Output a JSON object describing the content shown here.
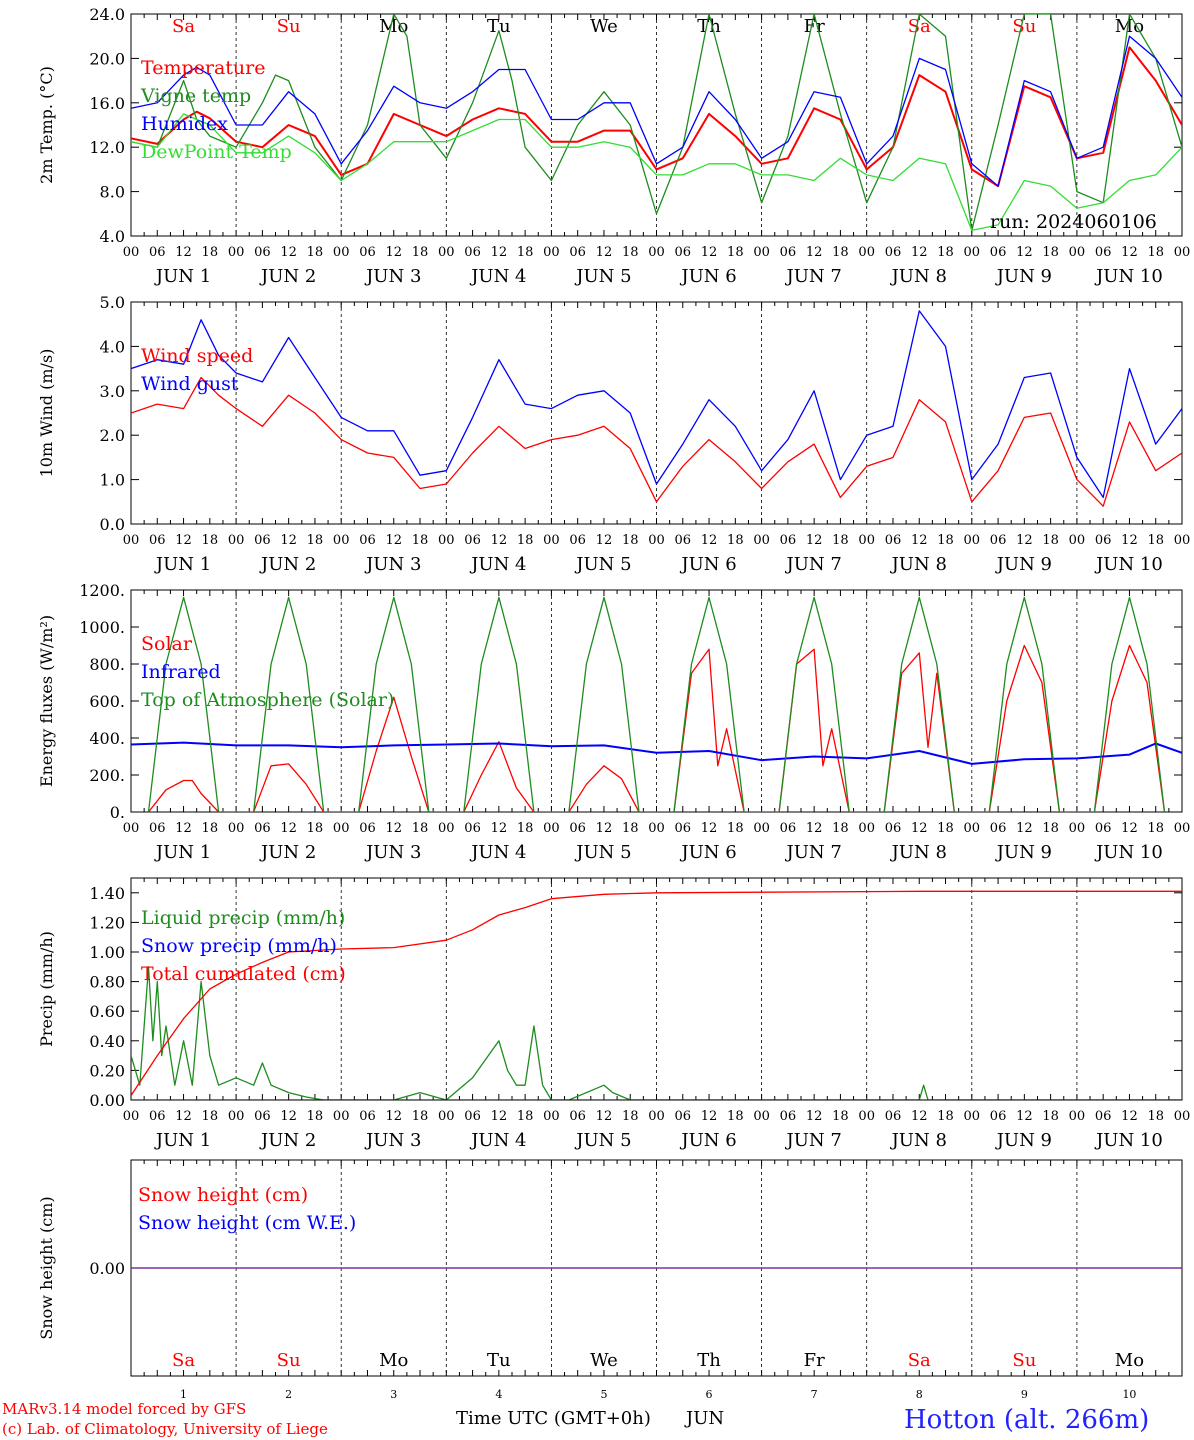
{
  "meta": {
    "run_label": "run: 2024060106",
    "credits": [
      "MARv3.14 model forced by GFS",
      "(c) Lab. of Climatology, University of Liege"
    ],
    "station": "Hotton (alt. 266m)",
    "xaxis_title": "Time UTC (GMT+0h)",
    "xaxis_month": "JUN"
  },
  "colors": {
    "red": "#ff0000",
    "green": "#1e8c1e",
    "blue": "#0000ff",
    "lightgreen": "#33dd33",
    "purple": "#7a2a9a"
  },
  "axis": {
    "days": [
      "1",
      "2",
      "3",
      "4",
      "5",
      "6",
      "7",
      "8",
      "9",
      "10"
    ],
    "weekdays": [
      "Sa",
      "Su",
      "Mo",
      "Tu",
      "We",
      "Th",
      "Fr",
      "Sa",
      "Su",
      "Mo"
    ],
    "weekend": [
      true,
      true,
      false,
      false,
      false,
      false,
      false,
      true,
      true,
      false
    ],
    "hour_labels": [
      "00",
      "06",
      "12",
      "18"
    ],
    "end_label": "00",
    "date_prefix": "JUN"
  },
  "chart_data": [
    {
      "type": "line",
      "ylabel": "2m Temp. (°C)",
      "ylim": [
        4,
        24
      ],
      "yticks": [
        "4.0",
        "8.0",
        "12.0",
        "16.0",
        "20.0",
        "24.0"
      ],
      "x_unit": "hours since JUN 1 00 UTC",
      "legend_placement": "top-left",
      "series": [
        {
          "name": "Temperature",
          "color": "red",
          "x": [
            0,
            6,
            12,
            15,
            18,
            24,
            30,
            36,
            42,
            48,
            54,
            60,
            66,
            72,
            78,
            84,
            90,
            96,
            102,
            108,
            114,
            120,
            126,
            132,
            138,
            144,
            150,
            156,
            162,
            168,
            174,
            180,
            186,
            192,
            198,
            204,
            210,
            216,
            222,
            228,
            234,
            240
          ],
          "y": [
            12.8,
            12.3,
            14.5,
            15.2,
            14.6,
            12.5,
            12.0,
            14.0,
            13.0,
            9.5,
            10.5,
            15.0,
            14.0,
            13.0,
            14.5,
            15.5,
            15.0,
            12.5,
            12.5,
            13.5,
            13.5,
            10.0,
            11.0,
            15.0,
            13.0,
            10.5,
            11.0,
            15.5,
            14.5,
            10.0,
            12.0,
            18.5,
            17.0,
            10.0,
            8.5,
            17.5,
            16.5,
            11.0,
            11.5,
            21.0,
            18.0,
            14.0
          ]
        },
        {
          "name": "Vigne temp",
          "color": "green",
          "x": [
            0,
            6,
            12,
            15,
            18,
            24,
            30,
            33,
            36,
            42,
            48,
            54,
            60,
            63,
            66,
            72,
            78,
            84,
            87,
            90,
            96,
            102,
            108,
            114,
            120,
            126,
            132,
            138,
            144,
            150,
            156,
            162,
            168,
            174,
            180,
            186,
            192,
            198,
            204,
            210,
            216,
            222,
            228,
            234,
            240
          ],
          "y": [
            12.5,
            12.0,
            18.0,
            14.5,
            13.0,
            12.0,
            16.0,
            18.5,
            18.0,
            12.0,
            9.0,
            14.0,
            24.0,
            22.0,
            14.0,
            11.0,
            16.0,
            22.5,
            18.0,
            12.0,
            9.0,
            14.0,
            17.0,
            14.0,
            6.0,
            12.0,
            24.0,
            15.0,
            7.0,
            13.0,
            24.0,
            15.0,
            7.0,
            12.0,
            24.0,
            22.0,
            4.5,
            14.0,
            24.0,
            24.0,
            8.0,
            7.0,
            24.0,
            20.0,
            12.0
          ]
        },
        {
          "name": "Humidex",
          "color": "blue",
          "x": [
            0,
            6,
            12,
            15,
            18,
            24,
            30,
            36,
            42,
            48,
            54,
            60,
            66,
            72,
            78,
            84,
            90,
            96,
            102,
            108,
            114,
            120,
            126,
            132,
            138,
            144,
            150,
            156,
            162,
            168,
            174,
            180,
            186,
            192,
            198,
            204,
            210,
            216,
            222,
            228,
            234,
            240
          ],
          "y": [
            15.5,
            16.0,
            18.5,
            19.2,
            18.5,
            14.0,
            14.0,
            17.0,
            15.0,
            10.5,
            13.5,
            17.5,
            16.0,
            15.5,
            17.0,
            19.0,
            19.0,
            14.5,
            14.5,
            16.0,
            16.0,
            10.5,
            12.0,
            17.0,
            14.5,
            11.0,
            12.5,
            17.0,
            16.5,
            10.5,
            13.0,
            20.0,
            19.0,
            10.5,
            8.5,
            18.0,
            17.0,
            11.0,
            12.0,
            22.0,
            20.0,
            16.5
          ]
        },
        {
          "name": "DewPoint Temp",
          "color": "lightgreen",
          "x": [
            0,
            6,
            12,
            18,
            24,
            30,
            36,
            42,
            48,
            54,
            60,
            66,
            72,
            78,
            84,
            90,
            96,
            102,
            108,
            114,
            120,
            126,
            132,
            138,
            144,
            150,
            156,
            162,
            168,
            174,
            180,
            186,
            192,
            198,
            204,
            210,
            216,
            222,
            228,
            234,
            240
          ],
          "y": [
            12.5,
            12.0,
            15.0,
            14.0,
            11.5,
            11.5,
            13.0,
            11.5,
            9.0,
            10.5,
            12.5,
            12.5,
            12.5,
            13.5,
            14.5,
            14.5,
            12.0,
            12.0,
            12.5,
            12.0,
            9.5,
            9.5,
            10.5,
            10.5,
            9.5,
            9.5,
            9.0,
            11.0,
            9.5,
            9.0,
            11.0,
            10.5,
            4.5,
            5.0,
            9.0,
            8.5,
            6.5,
            7.0,
            9.0,
            9.5,
            12.0
          ]
        }
      ]
    },
    {
      "type": "line",
      "ylabel": "10m Wind (m/s)",
      "ylim": [
        0,
        5
      ],
      "yticks": [
        "0.0",
        "1.0",
        "2.0",
        "3.0",
        "4.0",
        "5.0"
      ],
      "legend_placement": "top-left",
      "series": [
        {
          "name": "Wind speed",
          "color": "red",
          "x": [
            0,
            6,
            12,
            16,
            20,
            24,
            30,
            36,
            42,
            48,
            54,
            60,
            66,
            72,
            78,
            84,
            90,
            96,
            102,
            108,
            114,
            120,
            126,
            132,
            138,
            144,
            150,
            156,
            162,
            168,
            174,
            180,
            186,
            192,
            198,
            204,
            210,
            216,
            222,
            228,
            234,
            240
          ],
          "y": [
            2.5,
            2.7,
            2.6,
            3.3,
            2.9,
            2.6,
            2.2,
            2.9,
            2.5,
            1.9,
            1.6,
            1.5,
            0.8,
            0.9,
            1.6,
            2.2,
            1.7,
            1.9,
            2.0,
            2.2,
            1.7,
            0.5,
            1.3,
            1.9,
            1.4,
            0.8,
            1.4,
            1.8,
            0.6,
            1.3,
            1.5,
            2.8,
            2.3,
            0.5,
            1.2,
            2.4,
            2.5,
            1.0,
            0.4,
            2.3,
            1.2,
            1.6
          ]
        },
        {
          "name": "Wind gust",
          "color": "blue",
          "x": [
            0,
            6,
            12,
            16,
            20,
            24,
            30,
            36,
            42,
            48,
            54,
            60,
            66,
            72,
            78,
            84,
            90,
            96,
            102,
            108,
            114,
            120,
            126,
            132,
            138,
            144,
            150,
            156,
            162,
            168,
            174,
            180,
            186,
            192,
            198,
            204,
            210,
            216,
            222,
            228,
            234,
            240
          ],
          "y": [
            3.5,
            3.7,
            3.6,
            4.6,
            3.8,
            3.4,
            3.2,
            4.2,
            3.3,
            2.4,
            2.1,
            2.1,
            1.1,
            1.2,
            2.4,
            3.7,
            2.7,
            2.6,
            2.9,
            3.0,
            2.5,
            0.9,
            1.8,
            2.8,
            2.2,
            1.2,
            1.9,
            3.0,
            1.0,
            2.0,
            2.2,
            4.8,
            4.0,
            1.0,
            1.8,
            3.3,
            3.4,
            1.5,
            0.6,
            3.5,
            1.8,
            2.6
          ]
        }
      ]
    },
    {
      "type": "line",
      "ylabel": "Energy fluxes (W/m²)",
      "ylim": [
        0,
        1200
      ],
      "yticks": [
        "0.",
        "200.",
        "400.",
        "600.",
        "800.",
        "1000.",
        "1200."
      ],
      "legend_placement": "top-left",
      "series": [
        {
          "name": "Solar",
          "color": "red",
          "x": [
            4,
            8,
            12,
            14,
            16,
            20,
            28,
            32,
            36,
            40,
            44,
            52,
            56,
            60,
            64,
            68,
            76,
            80,
            84,
            88,
            92,
            100,
            104,
            108,
            112,
            116,
            124,
            128,
            132,
            134,
            136,
            140,
            148,
            152,
            156,
            158,
            160,
            164,
            172,
            176,
            180,
            182,
            184,
            188,
            196,
            200,
            204,
            208,
            212,
            220,
            224,
            228,
            232,
            236
          ],
          "y": [
            0,
            120,
            170,
            170,
            100,
            0,
            0,
            250,
            260,
            150,
            0,
            0,
            330,
            620,
            300,
            0,
            0,
            200,
            380,
            130,
            0,
            0,
            150,
            250,
            180,
            0,
            0,
            750,
            880,
            250,
            450,
            0,
            0,
            800,
            880,
            250,
            450,
            0,
            0,
            750,
            860,
            350,
            750,
            0,
            0,
            600,
            900,
            700,
            0,
            0,
            600,
            900,
            700,
            0
          ]
        },
        {
          "name": "Infrared",
          "color": "blue",
          "x": [
            0,
            12,
            24,
            36,
            48,
            60,
            72,
            84,
            96,
            108,
            120,
            132,
            144,
            156,
            168,
            180,
            192,
            204,
            216,
            228,
            234,
            240
          ],
          "y": [
            365,
            375,
            360,
            360,
            350,
            360,
            365,
            370,
            355,
            360,
            320,
            330,
            280,
            300,
            290,
            330,
            260,
            285,
            290,
            310,
            370,
            320
          ]
        },
        {
          "name": "Top of Atmosphere (Solar)",
          "color": "green",
          "x": [
            4,
            8,
            12,
            16,
            20,
            28,
            32,
            36,
            40,
            44,
            52,
            56,
            60,
            64,
            68,
            76,
            80,
            84,
            88,
            92,
            100,
            104,
            108,
            112,
            116,
            124,
            128,
            132,
            136,
            140,
            148,
            152,
            156,
            160,
            164,
            172,
            176,
            180,
            184,
            188,
            196,
            200,
            204,
            208,
            212,
            220,
            224,
            228,
            232,
            236
          ],
          "y": [
            0,
            800,
            1160,
            800,
            0,
            0,
            800,
            1160,
            800,
            0,
            0,
            800,
            1160,
            800,
            0,
            0,
            800,
            1160,
            800,
            0,
            0,
            800,
            1160,
            800,
            0,
            0,
            800,
            1160,
            800,
            0,
            0,
            800,
            1160,
            800,
            0,
            0,
            800,
            1160,
            800,
            0,
            0,
            800,
            1160,
            800,
            0,
            0,
            800,
            1160,
            800,
            0
          ]
        }
      ]
    },
    {
      "type": "line",
      "ylabel": "Precip (mm/h)",
      "ylim": [
        0,
        1.5
      ],
      "yticks": [
        "0.00",
        "0.20",
        "0.40",
        "0.60",
        "0.80",
        "1.00",
        "1.20",
        "1.40"
      ],
      "legend_placement": "top-left",
      "series": [
        {
          "name": "Liquid precip (mm/h)",
          "color": "green",
          "x": [
            0,
            2,
            4,
            5,
            6,
            7,
            8,
            10,
            12,
            14,
            16,
            18,
            20,
            24,
            28,
            30,
            32,
            36,
            40,
            44,
            60,
            66,
            72,
            78,
            84,
            86,
            88,
            90,
            92,
            94,
            96,
            100,
            108,
            110,
            114,
            120,
            180,
            181,
            182,
            240
          ],
          "y": [
            0.3,
            0.1,
            0.9,
            0.4,
            0.8,
            0.3,
            0.5,
            0.1,
            0.4,
            0.1,
            0.8,
            0.3,
            0.1,
            0.15,
            0.1,
            0.25,
            0.1,
            0.05,
            0.02,
            0.0,
            0.0,
            0.05,
            0.0,
            0.15,
            0.4,
            0.2,
            0.1,
            0.1,
            0.5,
            0.1,
            0.0,
            0.0,
            0.1,
            0.05,
            0.0,
            0.0,
            0.0,
            0.1,
            0.0,
            0.0
          ]
        },
        {
          "name": "Snow precip (mm/h)",
          "color": "blue",
          "x": [
            0,
            240
          ],
          "y": [
            0,
            0
          ]
        },
        {
          "name": "Total cumulated (cm)",
          "color": "red",
          "x": [
            0,
            6,
            12,
            18,
            24,
            30,
            36,
            48,
            60,
            72,
            78,
            84,
            90,
            96,
            108,
            120,
            180,
            240
          ],
          "y": [
            0.03,
            0.3,
            0.55,
            0.75,
            0.85,
            0.93,
            1.0,
            1.02,
            1.03,
            1.08,
            1.15,
            1.25,
            1.3,
            1.36,
            1.39,
            1.4,
            1.41,
            1.41
          ]
        }
      ]
    },
    {
      "type": "line",
      "ylabel": "Snow height (cm)",
      "ylim": [
        -1,
        1
      ],
      "yticks": [
        "0.00"
      ],
      "legend_placement": "top-left",
      "series": [
        {
          "name": "Snow height (cm)",
          "color": "red",
          "x": [
            0,
            240
          ],
          "y": [
            0,
            0
          ]
        },
        {
          "name": "Snow height (cm W.E.)",
          "color": "blue",
          "x": [
            0,
            240
          ],
          "y": [
            0,
            0
          ]
        }
      ]
    }
  ]
}
